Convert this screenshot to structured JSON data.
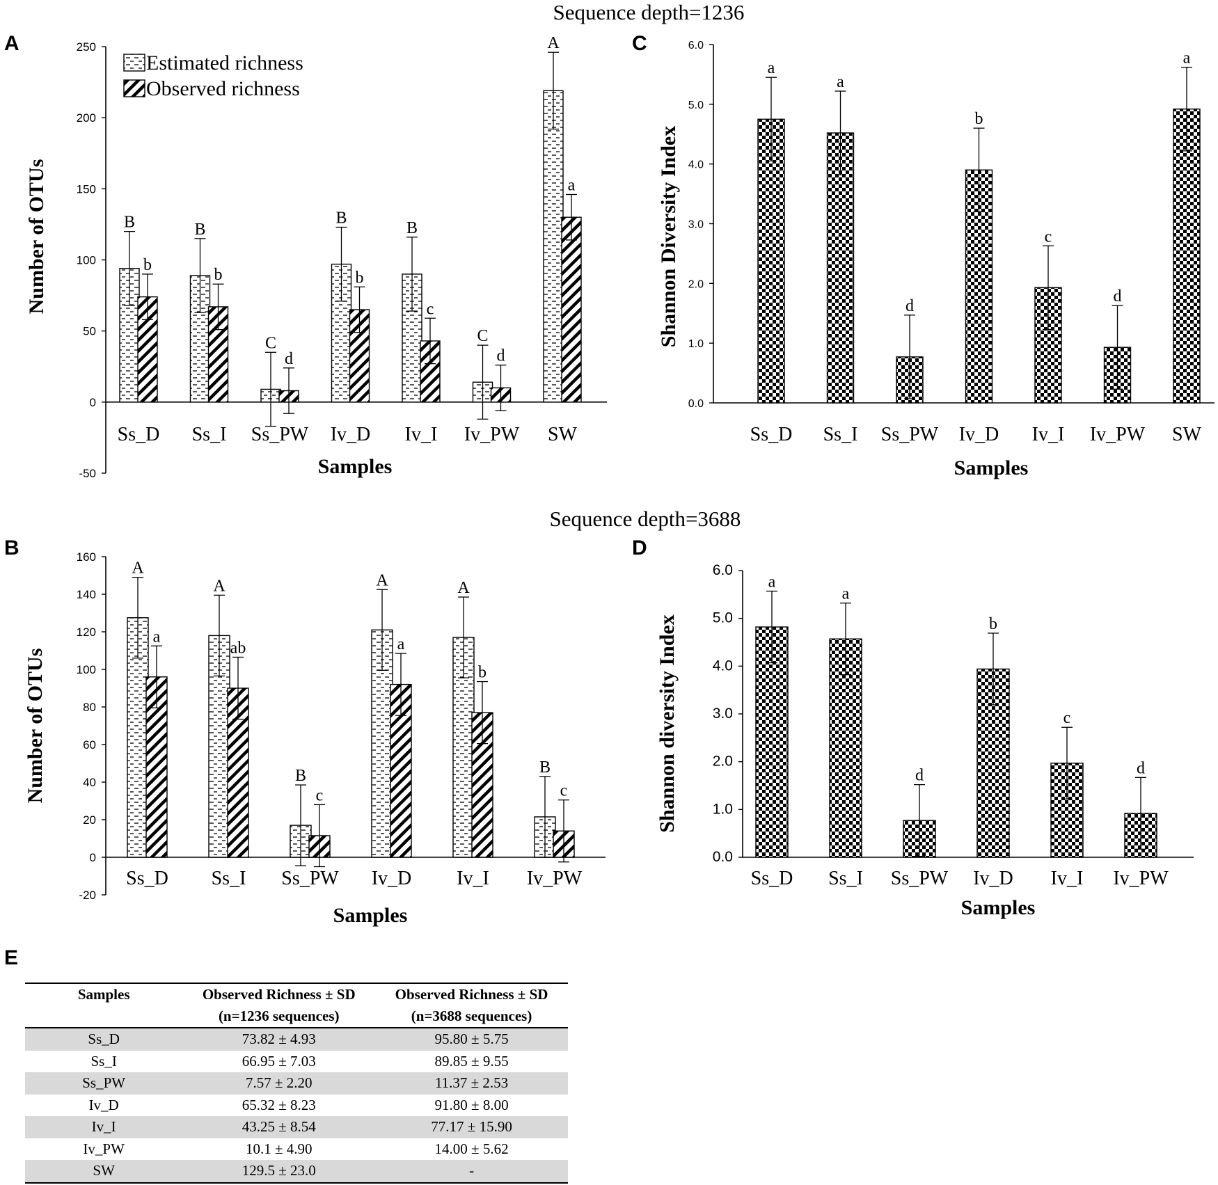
{
  "section_titles": {
    "top": "Sequence depth=1236",
    "bottom": "Sequence depth=3688"
  },
  "chart_data": [
    {
      "panel": "A",
      "type": "bar",
      "title": "Sequence depth=1236",
      "xlabel": "Samples",
      "ylabel": "Number of OTUs",
      "ylim": [
        -50,
        250
      ],
      "yticks": [
        -50,
        0,
        50,
        100,
        150,
        200,
        250
      ],
      "categories": [
        "Ss_D",
        "Ss_I",
        "Ss_PW",
        "Iv_D",
        "Iv_I",
        "Iv_PW",
        "SW"
      ],
      "legend_position": "top-left",
      "series": [
        {
          "name": "Estimated richness",
          "pattern": "dashes",
          "values": [
            94,
            89,
            9,
            97,
            90,
            14,
            219
          ],
          "errors": [
            26,
            26,
            26,
            26,
            26,
            26,
            27
          ],
          "labels": [
            "B",
            "B",
            "C",
            "B",
            "B",
            "C",
            "A"
          ]
        },
        {
          "name": "Observed richness",
          "pattern": "diagonal",
          "values": [
            74,
            67,
            8,
            65,
            43,
            10,
            130
          ],
          "errors": [
            16,
            16,
            16,
            16,
            16,
            16,
            16
          ],
          "labels": [
            "b",
            "b",
            "d",
            "b",
            "c",
            "d",
            "a"
          ]
        }
      ]
    },
    {
      "panel": "B",
      "type": "bar",
      "title": "Sequence depth=3688",
      "xlabel": "Samples",
      "ylabel": "Number of OTUs",
      "ylim": [
        -20,
        160
      ],
      "yticks": [
        -20,
        0,
        20,
        40,
        60,
        80,
        100,
        120,
        140,
        160
      ],
      "categories": [
        "Ss_D",
        "Ss_I",
        "Ss_PW",
        "Iv_D",
        "Iv_I",
        "Iv_PW"
      ],
      "series": [
        {
          "name": "Estimated richness",
          "pattern": "dashes",
          "values": [
            127.5,
            118,
            17,
            121,
            117,
            21.5
          ],
          "errors": [
            21.5,
            21.5,
            21.5,
            21.5,
            21.5,
            21.5
          ],
          "labels": [
            "A",
            "A",
            "B",
            "A",
            "A",
            "B"
          ]
        },
        {
          "name": "Observed richness",
          "pattern": "diagonal",
          "values": [
            96,
            90,
            11.5,
            92,
            77,
            14
          ],
          "errors": [
            16.5,
            16.5,
            16.5,
            16.5,
            16.5,
            16.5
          ],
          "labels": [
            "a",
            "ab",
            "c",
            "a",
            "b",
            "c"
          ]
        }
      ]
    },
    {
      "panel": "C",
      "type": "bar",
      "title": "Sequence depth=1236",
      "xlabel": "Samples",
      "ylabel": "Shannon Diversity Index",
      "ylim": [
        0,
        6
      ],
      "yticks": [
        "0.0",
        "1.0",
        "2.0",
        "3.0",
        "4.0",
        "5.0",
        "6.0"
      ],
      "categories": [
        "Ss_D",
        "Ss_I",
        "Ss_PW",
        "Iv_D",
        "Iv_I",
        "Iv_PW",
        "SW"
      ],
      "series": [
        {
          "name": "Shannon Diversity Index",
          "pattern": "checker",
          "values": [
            4.75,
            4.52,
            0.77,
            3.9,
            1.93,
            0.93,
            4.92
          ],
          "errors": [
            0.7,
            0.7,
            0.7,
            0.7,
            0.7,
            0.7,
            0.7
          ],
          "labels": [
            "a",
            "a",
            "d",
            "b",
            "c",
            "d",
            "a"
          ]
        }
      ]
    },
    {
      "panel": "D",
      "type": "bar",
      "title": "Sequence depth=3688",
      "xlabel": "Samples",
      "ylabel": "Shannon diversity Index",
      "ylim": [
        0,
        6
      ],
      "yticks": [
        "0.0",
        "1.0",
        "2.0",
        "3.0",
        "4.0",
        "5.0",
        "6.0"
      ],
      "categories": [
        "Ss_D",
        "Ss_I",
        "Ss_PW",
        "Iv_D",
        "Iv_I",
        "Iv_PW"
      ],
      "series": [
        {
          "name": "Shannon diversity Index",
          "pattern": "checker",
          "values": [
            4.82,
            4.57,
            0.77,
            3.94,
            1.97,
            0.92
          ],
          "errors": [
            0.75,
            0.75,
            0.75,
            0.75,
            0.75,
            0.75
          ],
          "labels": [
            "a",
            "a",
            "d",
            "b",
            "c",
            "d"
          ]
        }
      ]
    },
    {
      "panel": "E",
      "type": "table",
      "columns": [
        "Samples",
        "Observed Richness ± SD",
        "Observed Richness ± SD"
      ],
      "column_subtitles": [
        "",
        "(n=1236 sequences)",
        "(n=3688 sequences)"
      ],
      "rows": [
        [
          "Ss_D",
          "73.82 ± 4.93",
          "95.80 ± 5.75"
        ],
        [
          "Ss_I",
          "66.95 ± 7.03",
          "89.85 ± 9.55"
        ],
        [
          "Ss_PW",
          "7.57 ± 2.20",
          "11.37 ± 2.53"
        ],
        [
          "Iv_D",
          "65.32 ± 8.23",
          "91.80 ± 8.00"
        ],
        [
          "Iv_I",
          "43.25 ± 8.54",
          "77.17 ± 15.90"
        ],
        [
          "Iv_PW",
          "10.1 ± 4.90",
          "14.00 ± 5.62"
        ],
        [
          "SW",
          "129.5 ± 23.0",
          "-"
        ]
      ]
    }
  ]
}
